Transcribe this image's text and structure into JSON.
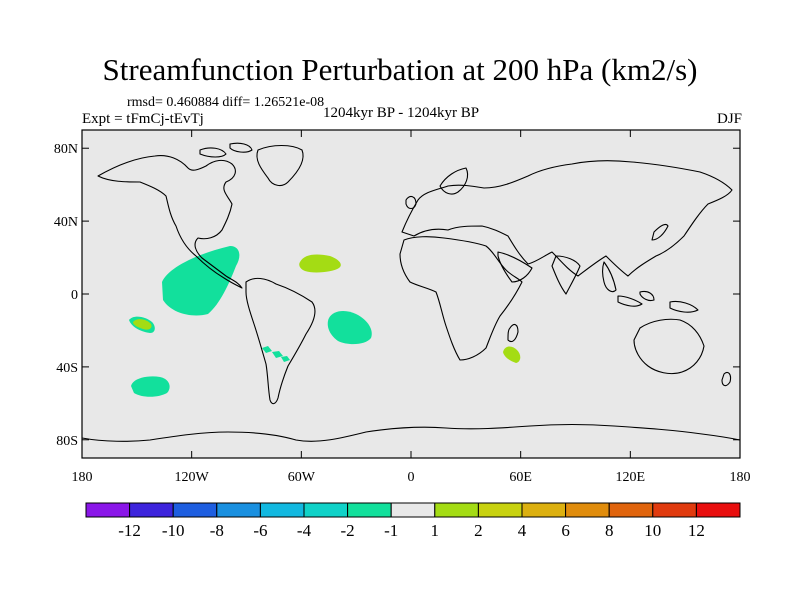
{
  "title": "Streamfunction Perturbation at 200 hPa (km2/s)",
  "stats_line": "rmsd= 0.460884 diff= 1.26521e-08",
  "experiment": "Expt = tFmCj-tEvTj",
  "period": "1204kyr BP - 1204kyr BP",
  "season": "DJF",
  "y_ticks": [
    "80N",
    "40N",
    "0",
    "40S",
    "80S"
  ],
  "x_ticks": [
    "180",
    "120W",
    "60W",
    "0",
    "60E",
    "120E",
    "180"
  ],
  "colorbar": {
    "labels": [
      "-12",
      "-10",
      "-8",
      "-6",
      "-4",
      "-2",
      "-1",
      "1",
      "2",
      "4",
      "6",
      "8",
      "10",
      "12"
    ],
    "colors": [
      "#8a16e8",
      "#3d24dc",
      "#1e5ee0",
      "#1a90e0",
      "#12b8e0",
      "#10d2c8",
      "#12e09c",
      "#e8e8e8",
      "#a4dc14",
      "#c8d210",
      "#dcb010",
      "#e08c0c",
      "#e0640c",
      "#e03a0e",
      "#e80e0e"
    ]
  },
  "map": {
    "background_color": "#e8e8e8",
    "anomalies": [
      {
        "name": "east-pacific-negative",
        "level": "-1",
        "color": "#12e09c"
      },
      {
        "name": "south-atlantic-negative",
        "level": "-1",
        "color": "#12e09c"
      },
      {
        "name": "south-pacific-negative",
        "level": "-1",
        "color": "#12e09c"
      },
      {
        "name": "southwest-pacific-negative",
        "level": "-1",
        "color": "#12e09c"
      },
      {
        "name": "chile-offshore-negative",
        "level": "-1",
        "color": "#12e09c"
      },
      {
        "name": "north-atlantic-positive",
        "level": "1",
        "color": "#a4dc14"
      },
      {
        "name": "madagascar-positive",
        "level": "1",
        "color": "#a4dc14"
      },
      {
        "name": "south-pacific-positive",
        "level": "1",
        "color": "#a4dc14"
      }
    ]
  }
}
